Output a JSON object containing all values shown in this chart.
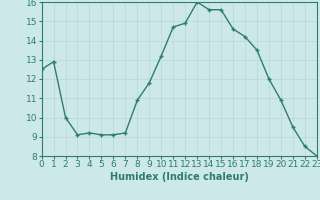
{
  "x": [
    0,
    1,
    2,
    3,
    4,
    5,
    6,
    7,
    8,
    9,
    10,
    11,
    12,
    13,
    14,
    15,
    16,
    17,
    18,
    19,
    20,
    21,
    22,
    23
  ],
  "y": [
    12.5,
    12.9,
    10.0,
    9.1,
    9.2,
    9.1,
    9.1,
    9.2,
    10.9,
    11.8,
    13.2,
    14.7,
    14.9,
    16.0,
    15.6,
    15.6,
    14.6,
    14.2,
    13.5,
    12.0,
    10.9,
    9.5,
    8.5,
    8.0
  ],
  "line_color": "#2e7d6e",
  "marker": "+",
  "marker_size": 3,
  "background_color": "#cde8e8",
  "grid_color": "#b8d8d8",
  "xlabel": "Humidex (Indice chaleur)",
  "xlim": [
    0,
    23
  ],
  "ylim": [
    8,
    16
  ],
  "yticks": [
    8,
    9,
    10,
    11,
    12,
    13,
    14,
    15,
    16
  ],
  "xticks": [
    0,
    1,
    2,
    3,
    4,
    5,
    6,
    7,
    8,
    9,
    10,
    11,
    12,
    13,
    14,
    15,
    16,
    17,
    18,
    19,
    20,
    21,
    22,
    23
  ],
  "xlabel_fontsize": 7,
  "tick_fontsize": 6.5,
  "line_width": 1.0,
  "axis_color": "#2e7d6e",
  "marker_edge_width": 1.0
}
